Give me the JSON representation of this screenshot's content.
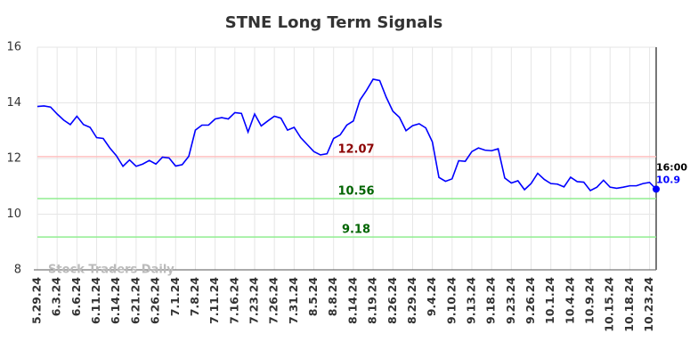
{
  "chart_data": {
    "type": "line",
    "title": "STNE Long Term Signals",
    "categories": [
      "5.29.24",
      null,
      null,
      "6.3.24",
      null,
      null,
      "6.6.24",
      null,
      null,
      "6.11.24",
      null,
      null,
      "6.14.24",
      null,
      null,
      "6.21.24",
      null,
      null,
      "6.26.24",
      null,
      null,
      "7.1.24",
      null,
      null,
      "7.8.24",
      null,
      null,
      "7.11.24",
      null,
      null,
      "7.16.24",
      null,
      null,
      "7.23.24",
      null,
      null,
      "7.26.24",
      null,
      null,
      "7.31.24",
      null,
      null,
      "8.5.24",
      null,
      null,
      "8.8.24",
      null,
      null,
      "8.14.24",
      null,
      null,
      "8.19.24",
      null,
      null,
      "8.26.24",
      null,
      null,
      "8.29.24",
      null,
      null,
      "9.4.24",
      null,
      null,
      "9.10.24",
      null,
      null,
      "9.13.24",
      null,
      null,
      "9.18.24",
      null,
      null,
      "9.23.24",
      null,
      null,
      "9.26.24",
      null,
      null,
      "10.1.24",
      null,
      null,
      "10.4.24",
      null,
      null,
      "10.9.24",
      null,
      null,
      "10.15.24",
      null,
      null,
      "10.18.24",
      null,
      null,
      "10.23.24",
      null
    ],
    "values": [
      13.87,
      13.89,
      13.85,
      13.6,
      13.38,
      13.22,
      13.52,
      13.22,
      13.12,
      12.75,
      12.72,
      12.38,
      12.1,
      11.72,
      11.95,
      11.72,
      11.8,
      11.93,
      11.8,
      12.05,
      12.02,
      11.73,
      11.78,
      12.08,
      13.02,
      13.2,
      13.2,
      13.42,
      13.47,
      13.42,
      13.65,
      13.62,
      12.95,
      13.6,
      13.17,
      13.35,
      13.52,
      13.45,
      13.02,
      13.12,
      12.75,
      12.5,
      12.25,
      12.13,
      12.17,
      12.72,
      12.85,
      13.2,
      13.35,
      14.1,
      14.45,
      14.85,
      14.8,
      14.2,
      13.7,
      13.48,
      13.0,
      13.18,
      13.25,
      13.1,
      12.6,
      11.32,
      11.18,
      11.27,
      11.92,
      11.9,
      12.25,
      12.38,
      12.3,
      12.28,
      12.35,
      11.3,
      11.12,
      11.2,
      10.88,
      11.1,
      11.47,
      11.25,
      11.1,
      11.08,
      10.98,
      11.33,
      11.17,
      11.15,
      10.85,
      10.97,
      11.22,
      10.97,
      10.93,
      10.97,
      11.02,
      11.02,
      11.1,
      11.14,
      10.9
    ],
    "color": "#0000ff",
    "ylim": [
      8,
      16
    ],
    "yticks": [
      8,
      10,
      12,
      14,
      16
    ],
    "grid": true,
    "hlines": [
      {
        "value": 12.07,
        "color": "#ffc0c0",
        "label_color": "#8b0000"
      },
      {
        "value": 10.56,
        "color": "#90ee90",
        "label_color": "#006400"
      },
      {
        "value": 9.18,
        "color": "#90ee90",
        "label_color": "#006400"
      }
    ],
    "last_time": "16:00",
    "watermark": "Stock Traders Daily"
  }
}
